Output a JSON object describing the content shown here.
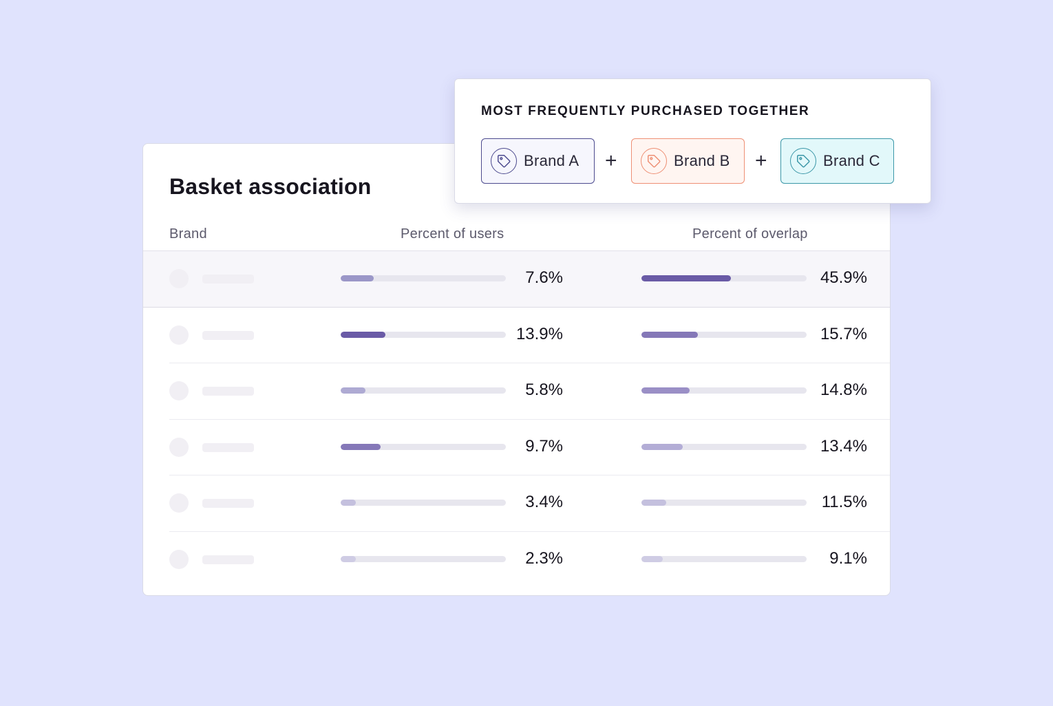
{
  "card": {
    "title": "Basket association",
    "columns": {
      "brand": "Brand",
      "users": "Percent of users",
      "overlap": "Percent of overlap"
    },
    "rows": [
      {
        "users_label": "7.6%",
        "users_fill": 0.2,
        "users_color": "#9b97c8",
        "overlap_label": "45.9%",
        "overlap_fill": 0.54,
        "overlap_color": "#6a5ba6"
      },
      {
        "users_label": "13.9%",
        "users_fill": 0.27,
        "users_color": "#6a5ba6",
        "overlap_label": "15.7%",
        "overlap_fill": 0.34,
        "overlap_color": "#8578b8"
      },
      {
        "users_label": "5.8%",
        "users_fill": 0.15,
        "users_color": "#aeaad3",
        "overlap_label": "14.8%",
        "overlap_fill": 0.29,
        "overlap_color": "#9a8fc6"
      },
      {
        "users_label": "9.7%",
        "users_fill": 0.24,
        "users_color": "#8578b8",
        "overlap_label": "13.4%",
        "overlap_fill": 0.25,
        "overlap_color": "#b3add6"
      },
      {
        "users_label": "3.4%",
        "users_fill": 0.09,
        "users_color": "#c4c0de",
        "overlap_label": "11.5%",
        "overlap_fill": 0.15,
        "overlap_color": "#c4c0de"
      },
      {
        "users_label": "2.3%",
        "users_fill": 0.09,
        "users_color": "#cfcce4",
        "overlap_label": "9.1%",
        "overlap_fill": 0.13,
        "overlap_color": "#cfcce4"
      }
    ]
  },
  "popup": {
    "title": "MOST FREQUENTLY PURCHASED TOGETHER",
    "chips": [
      {
        "label": "Brand A",
        "icon": "tag-icon",
        "color": "#4c4a8e"
      },
      {
        "label": "Brand B",
        "icon": "tag-icon",
        "color": "#ee8f74"
      },
      {
        "label": "Brand C",
        "icon": "tag-icon",
        "color": "#3b97a8"
      }
    ],
    "plus_symbol": "+"
  },
  "colors": {
    "background": "#e0e3fd",
    "track": "#e7e6ee"
  }
}
